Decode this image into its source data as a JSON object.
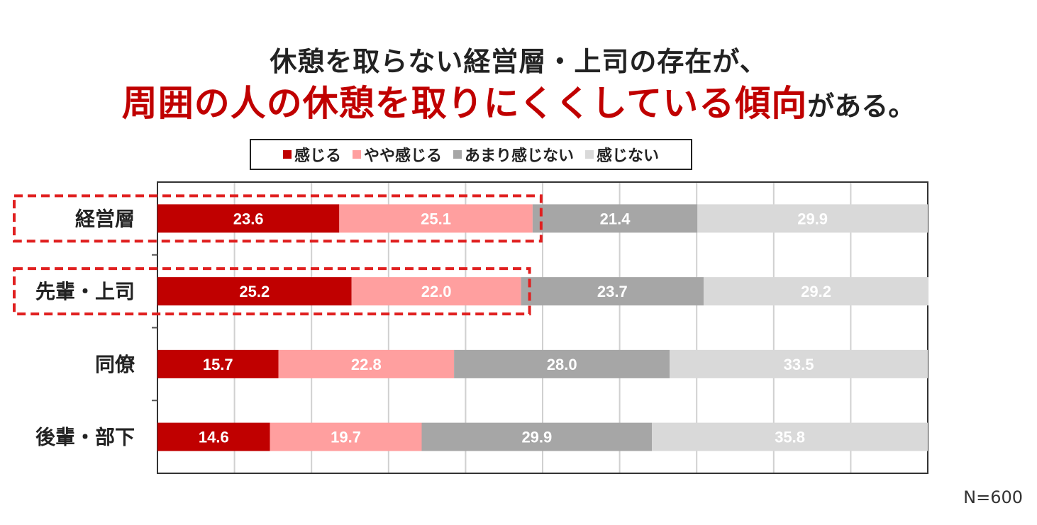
{
  "title_line1": "休憩を取らない経営層・上司の存在が、",
  "title_line2_highlight": "周囲の人の休憩を取りにくくしている傾向",
  "title_line2_rest": "がある。",
  "note": "N=600",
  "chart_data": {
    "type": "bar",
    "orientation": "horizontal",
    "stacked": true,
    "categories": [
      "経営層",
      "先輩・上司",
      "同僚",
      "後輩・部下"
    ],
    "series": [
      {
        "name": "感じる",
        "color": "#c00000",
        "label_color": "#ffffff",
        "values": [
          23.6,
          25.2,
          15.7,
          14.6
        ]
      },
      {
        "name": "やや感じる",
        "color": "#ff9f9f",
        "label_color": "#ffffff",
        "values": [
          25.1,
          22.0,
          22.8,
          19.7
        ]
      },
      {
        "name": "あまり感じない",
        "color": "#a6a6a6",
        "label_color": "#ffffff",
        "values": [
          21.4,
          23.7,
          28.0,
          29.9
        ]
      },
      {
        "name": "感じない",
        "color": "#d9d9d9",
        "label_color": "#ffffff",
        "values": [
          29.9,
          29.2,
          33.5,
          35.8
        ]
      }
    ],
    "xlim": [
      0,
      100
    ],
    "grid": true,
    "legend_position": "top",
    "highlighted_categories": [
      "経営層",
      "先輩・上司"
    ],
    "highlight_color": "#e02020"
  }
}
